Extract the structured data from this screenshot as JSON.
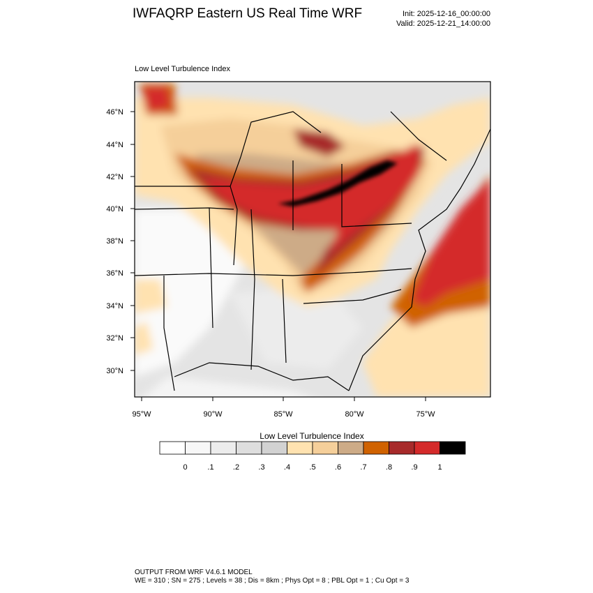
{
  "header": {
    "title": "IWFAQRP Eastern US Real Time WRF",
    "init": "Init: 2025-12-16_00:00:00",
    "valid": "Valid: 2025-12-21_14:00:00"
  },
  "plot": {
    "label": "Low Level Turbulence Index",
    "lat_ticks": [
      "46°N",
      "44°N",
      "42°N",
      "40°N",
      "38°N",
      "36°N",
      "34°N",
      "32°N",
      "30°N"
    ],
    "lon_ticks": [
      "95°W",
      "90°W",
      "85°W",
      "80°W",
      "75°W"
    ]
  },
  "colorbar": {
    "title": "Low Level Turbulence Index",
    "colors": [
      "#ffffff",
      "#f7f7f7",
      "#ececec",
      "#dedede",
      "#d2d2d2",
      "#ffe2b0",
      "#f5cf9a",
      "#cdab87",
      "#d06200",
      "#a72a2a",
      "#d42a2a",
      "#000000"
    ],
    "labels": [
      "0",
      ".1",
      ".2",
      ".3",
      ".4",
      ".5",
      ".6",
      ".7",
      ".8",
      ".9",
      "1"
    ]
  },
  "footer": {
    "line1": "OUTPUT FROM WRF V4.6.1 MODEL",
    "line2": "WE = 310 ; SN = 275 ; Levels = 38 ; Dis = 8km ; Phys Opt = 8 ; PBL Opt = 1 ; Cu Opt = 3"
  }
}
